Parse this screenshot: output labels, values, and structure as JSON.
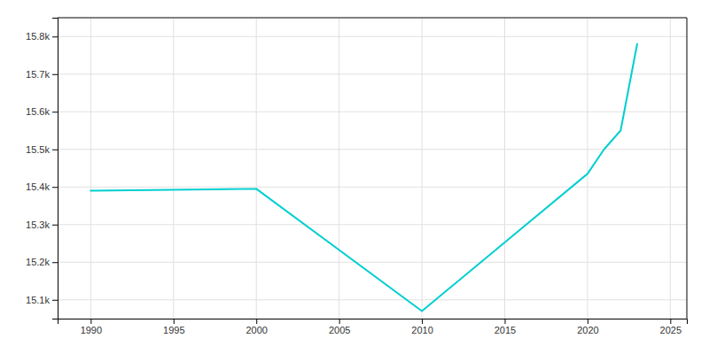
{
  "chart_data": {
    "type": "line",
    "x": [
      1990,
      2000,
      2010,
      2020,
      2021,
      2022,
      2023
    ],
    "values": [
      15390,
      15395,
      15070,
      15435,
      15500,
      15550,
      15780
    ],
    "color": "#00CED1",
    "xlim": [
      1988,
      2026
    ],
    "ylim": [
      15050,
      15850
    ],
    "xticks": [
      1990,
      1995,
      2000,
      2005,
      2010,
      2015,
      2020,
      2025
    ],
    "yticks": [
      {
        "value": 15100,
        "label": "15.1k"
      },
      {
        "value": 15200,
        "label": "15.2k"
      },
      {
        "value": 15300,
        "label": "15.3k"
      },
      {
        "value": 15400,
        "label": "15.4k"
      },
      {
        "value": 15500,
        "label": "15.5k"
      },
      {
        "value": 15600,
        "label": "15.6k"
      },
      {
        "value": 15700,
        "label": "15.7k"
      },
      {
        "value": 15800,
        "label": "15.8k"
      }
    ],
    "grid": true
  }
}
